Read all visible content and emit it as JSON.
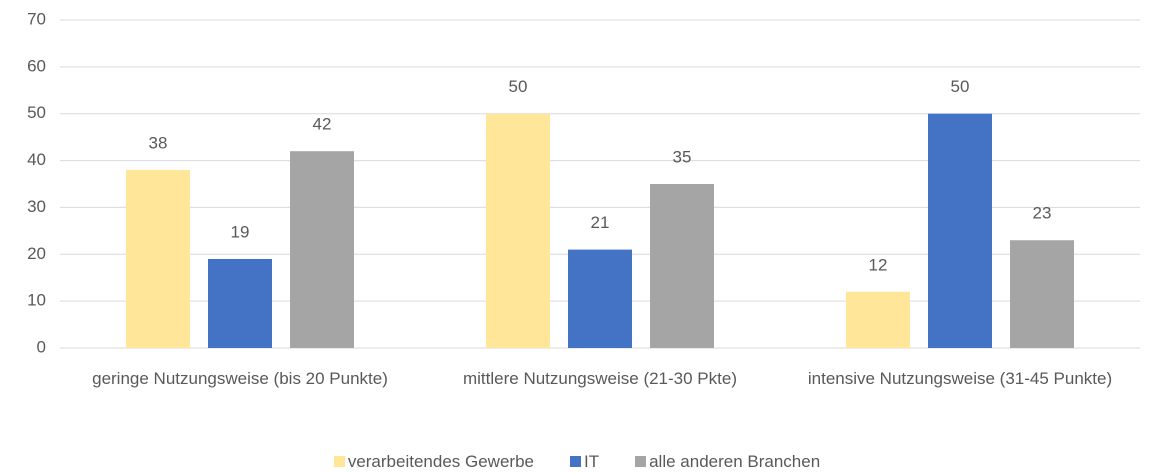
{
  "chart_data": {
    "type": "bar",
    "categories": [
      "geringe Nutzungsweise (bis 20 Punkte)",
      "mittlere Nutzungsweise (21-30 Pkte)",
      "intensive Nutzungsweise (31-45 Punkte)"
    ],
    "series": [
      {
        "name": "verarbeitendes Gewerbe",
        "color": "#FFE699",
        "values": [
          38,
          50,
          12
        ]
      },
      {
        "name": "IT",
        "color": "#4472C4",
        "values": [
          19,
          21,
          50
        ]
      },
      {
        "name": "alle anderen Branchen",
        "color": "#A5A5A5",
        "values": [
          42,
          35,
          23
        ]
      }
    ],
    "ylim": [
      0,
      70
    ],
    "yticks": [
      0,
      10,
      20,
      30,
      40,
      50,
      60,
      70
    ],
    "grid": true,
    "legend": "bottom"
  }
}
